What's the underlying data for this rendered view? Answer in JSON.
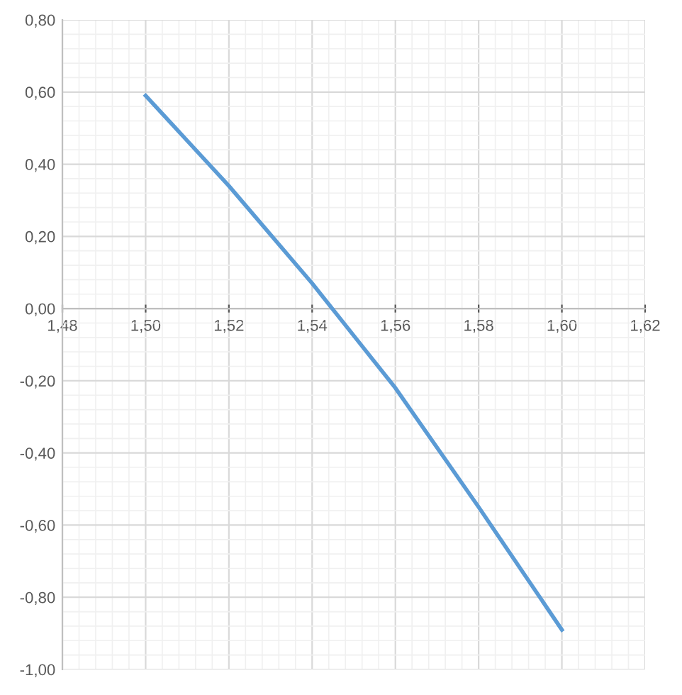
{
  "chart_data": {
    "type": "line",
    "x": [
      1.5,
      1.52,
      1.54,
      1.56,
      1.58,
      1.6
    ],
    "series": [
      {
        "color": "#5b9bd5",
        "values": [
          0.59,
          0.34,
          0.07,
          -0.22,
          -0.55,
          -0.89
        ]
      }
    ],
    "xlim": [
      1.48,
      1.62
    ],
    "ylim": [
      -1.0,
      0.8
    ],
    "xticks": [
      {
        "value": 1.48,
        "label": "1,48"
      },
      {
        "value": 1.5,
        "label": "1,50"
      },
      {
        "value": 1.52,
        "label": "1,52"
      },
      {
        "value": 1.54,
        "label": "1,54"
      },
      {
        "value": 1.56,
        "label": "1,56"
      },
      {
        "value": 1.58,
        "label": "1,58"
      },
      {
        "value": 1.6,
        "label": "1,60"
      },
      {
        "value": 1.62,
        "label": "1,62"
      }
    ],
    "yticks": [
      {
        "value": -1.0,
        "label": "-1,00"
      },
      {
        "value": -0.8,
        "label": "-0,80"
      },
      {
        "value": -0.6,
        "label": "-0,60"
      },
      {
        "value": -0.4,
        "label": "-0,40"
      },
      {
        "value": -0.2,
        "label": "-0,20"
      },
      {
        "value": 0.0,
        "label": "0,00"
      },
      {
        "value": 0.2,
        "label": "0,20"
      },
      {
        "value": 0.4,
        "label": "0,40"
      },
      {
        "value": 0.6,
        "label": "0,60"
      },
      {
        "value": 0.8,
        "label": "0,80"
      }
    ],
    "grid": true,
    "marker": "none",
    "line_style": "solid",
    "legend": false
  }
}
